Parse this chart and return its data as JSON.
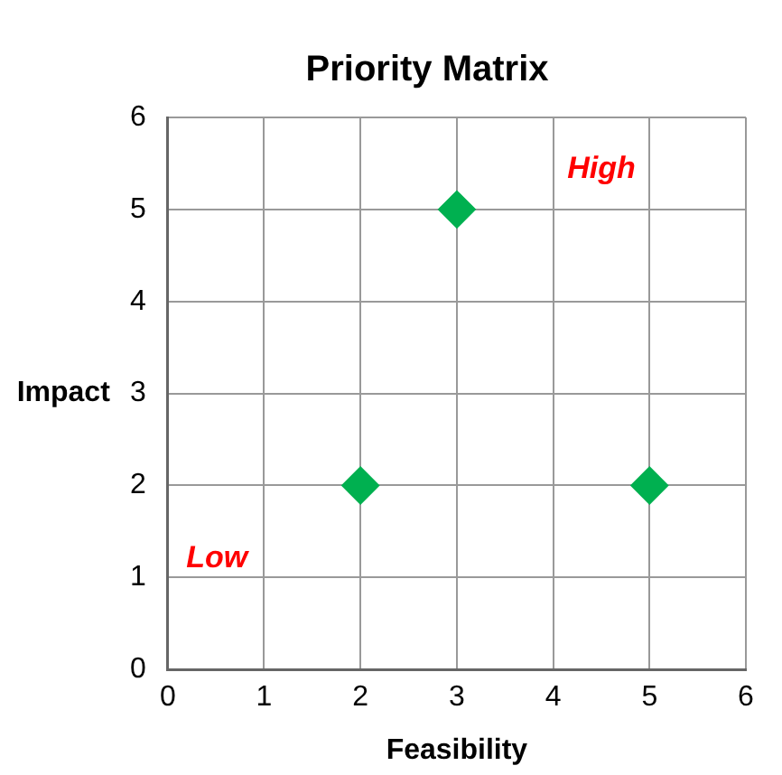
{
  "chart_data": {
    "type": "scatter",
    "title": "Priority Matrix",
    "xlabel": "Feasibility",
    "ylabel": "Impact",
    "x": [
      2,
      3,
      5
    ],
    "series": [
      {
        "color": "#00b050",
        "values": [
          2,
          5,
          2
        ]
      }
    ],
    "marker": "diamond",
    "grid": true,
    "legend": false,
    "xlim": [
      0,
      6
    ],
    "xticks": [
      0,
      1,
      2,
      3,
      4,
      5,
      6
    ],
    "ylim": [
      0,
      6
    ],
    "yticks": [
      0,
      1,
      2,
      3,
      4,
      5,
      6
    ],
    "annotations": [
      "High",
      "Low"
    ]
  }
}
